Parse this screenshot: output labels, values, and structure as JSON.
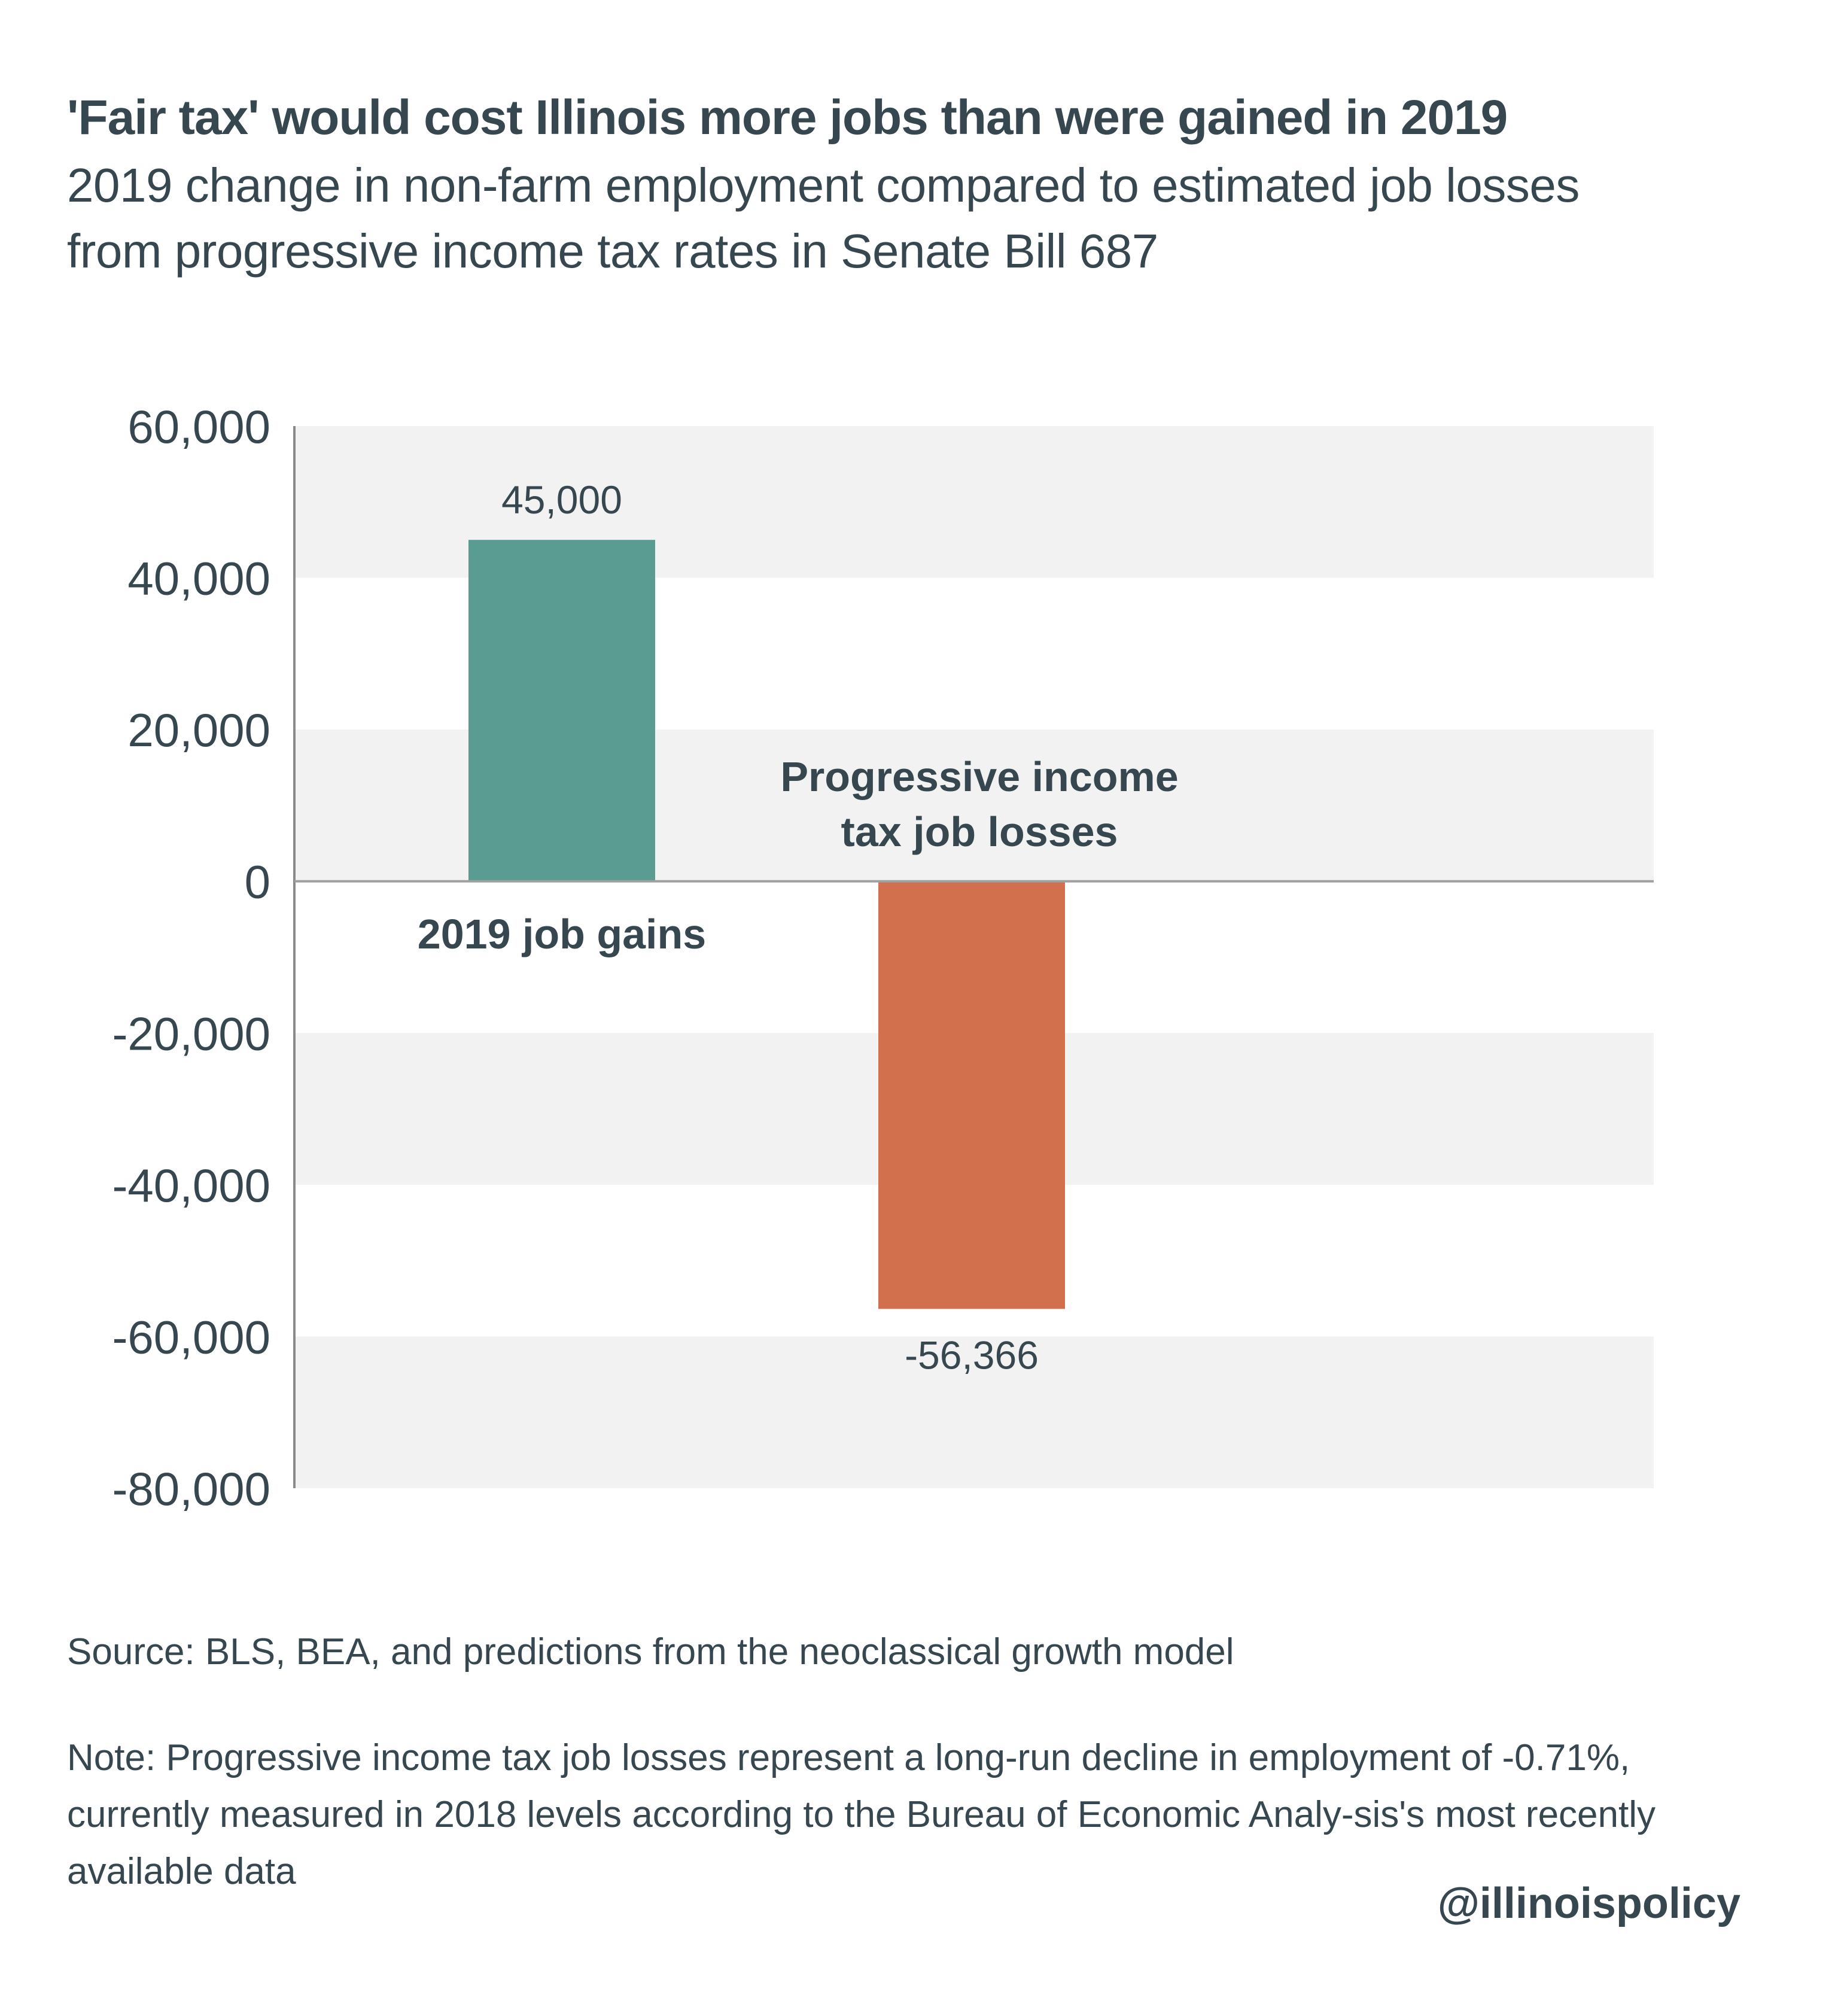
{
  "header": {
    "title": "'Fair tax' would cost Illinois more jobs than were gained in 2019",
    "subtitle": "2019 change in non-farm employment compared to estimated job losses from progressive income tax rates in Senate Bill 687"
  },
  "chart_data": {
    "type": "bar",
    "title": "'Fair tax' would cost Illinois more jobs than were gained in 2019",
    "subtitle": "2019 change in non-farm employment compared to estimated job losses from progressive income tax rates in Senate Bill 687",
    "categories": [
      "2019 job gains",
      "Progressive income tax job losses"
    ],
    "category_label_lines": [
      [
        "2019 job gains"
      ],
      [
        "Progressive income",
        "tax job losses"
      ]
    ],
    "values": [
      45000,
      -56366
    ],
    "value_labels": [
      "45,000",
      "-56,366"
    ],
    "colors": [
      "#5a9c91",
      "#d2704e"
    ],
    "ylim": [
      -80000,
      60000
    ],
    "yticks": [
      60000,
      40000,
      20000,
      0,
      -20000,
      -40000,
      -60000,
      -80000
    ],
    "ytick_labels": [
      "60,000",
      "40,000",
      "20,000",
      "0",
      "-20,000",
      "-40,000",
      "-60,000",
      "-80,000"
    ],
    "xlabel": "",
    "ylabel": "",
    "grid": "alternating horizontal bands",
    "band_color": "#f2f2f2",
    "legend": "none"
  },
  "footer": {
    "source": "Source: BLS, BEA, and predictions from the neoclassical growth model",
    "note": "Note: Progressive income tax job losses represent a long-run decline in employment of -0.71%, currently measured in 2018 levels according to the Bureau of Economic Analy-sis's most recently available data",
    "handle": "@illinoispolicy"
  }
}
